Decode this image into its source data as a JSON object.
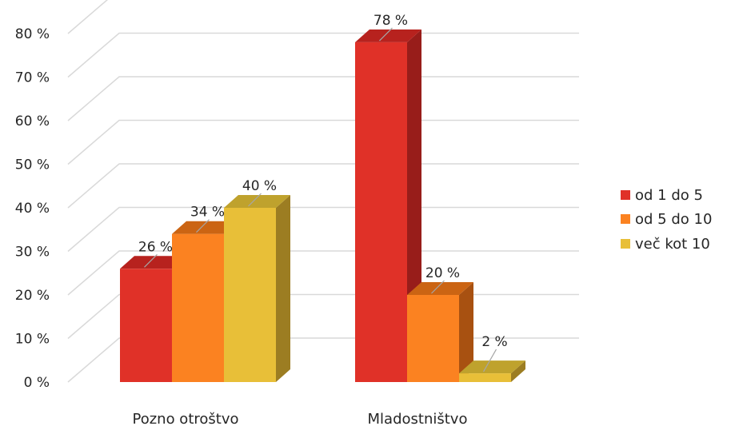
{
  "chart_data": {
    "type": "bar",
    "title": "",
    "xlabel": "",
    "ylabel": "",
    "ylim": [
      0,
      80
    ],
    "yticks": [
      0,
      10,
      20,
      30,
      40,
      50,
      60,
      70,
      80
    ],
    "ytick_labels": [
      "0 %",
      "10 %",
      "20 %",
      "30 %",
      "40 %",
      "50 %",
      "60 %",
      "70 %",
      "80 %"
    ],
    "categories": [
      "Pozno otroštvo",
      "Mladostništvo"
    ],
    "series": [
      {
        "name": "od 1 do 5",
        "values": [
          26,
          78
        ],
        "labels": [
          "26 %",
          "78 %"
        ],
        "color": "#E03128",
        "side": "#981D1A",
        "top": "#B7221E"
      },
      {
        "name": "od 5 do 10",
        "values": [
          34,
          20
        ],
        "labels": [
          "34 %",
          "20 %"
        ],
        "color": "#FB8221",
        "side": "#A85111",
        "top": "#CB6413"
      },
      {
        "name": "več kot 10",
        "values": [
          40,
          2
        ],
        "labels": [
          "40 %",
          "2 %"
        ],
        "color": "#E8BF38",
        "side": "#9C7D22",
        "top": "#BFA22D"
      }
    ],
    "grid": true,
    "legend": "right",
    "three_d": true
  }
}
